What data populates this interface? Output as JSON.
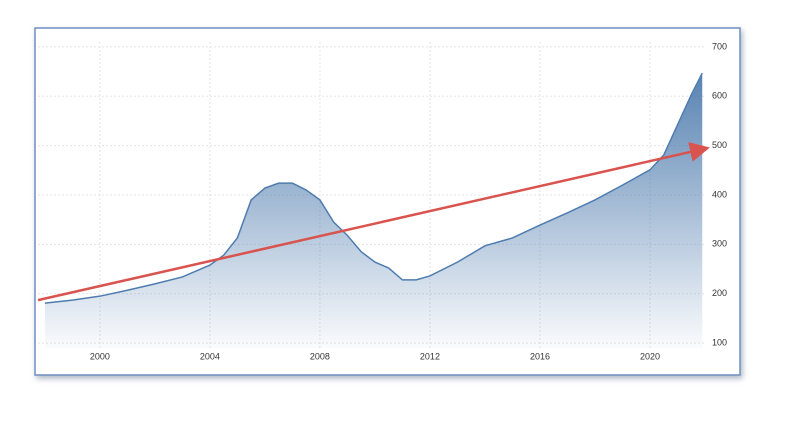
{
  "chart_data": {
    "type": "area",
    "series": [
      {
        "type": "area",
        "color": "#4f7cae",
        "x": [
          1998,
          1999,
          2000,
          2001,
          2002,
          2003,
          2004,
          2004.5,
          2005,
          2005.5,
          2006,
          2006.5,
          2007,
          2007.5,
          2008,
          2008.5,
          2009,
          2009.5,
          2010,
          2010.5,
          2011,
          2011.5,
          2012,
          2013,
          2014,
          2015,
          2016,
          2017,
          2018,
          2019,
          2020,
          2020.5,
          2021,
          2021.5,
          2021.9
        ],
        "values": [
          181,
          187,
          195,
          207,
          220,
          234,
          258,
          278,
          313,
          390,
          414,
          424,
          424,
          410,
          390,
          345,
          318,
          285,
          264,
          252,
          228,
          228,
          236,
          264,
          297,
          313,
          339,
          364,
          390,
          420,
          451,
          481,
          542,
          603,
          647
        ]
      },
      {
        "type": "line",
        "color": "#d9534f",
        "x": [
          1997.75,
          2022.0
        ],
        "values": [
          187,
          494
        ]
      }
    ],
    "xlim": [
      1997.75,
      2022.0
    ],
    "xticks": [
      2000,
      2004,
      2008,
      2012,
      2016,
      2020
    ],
    "ylim": [
      90,
      710
    ],
    "yticks": [
      100,
      200,
      300,
      400,
      500,
      600,
      700
    ],
    "grid": true
  }
}
